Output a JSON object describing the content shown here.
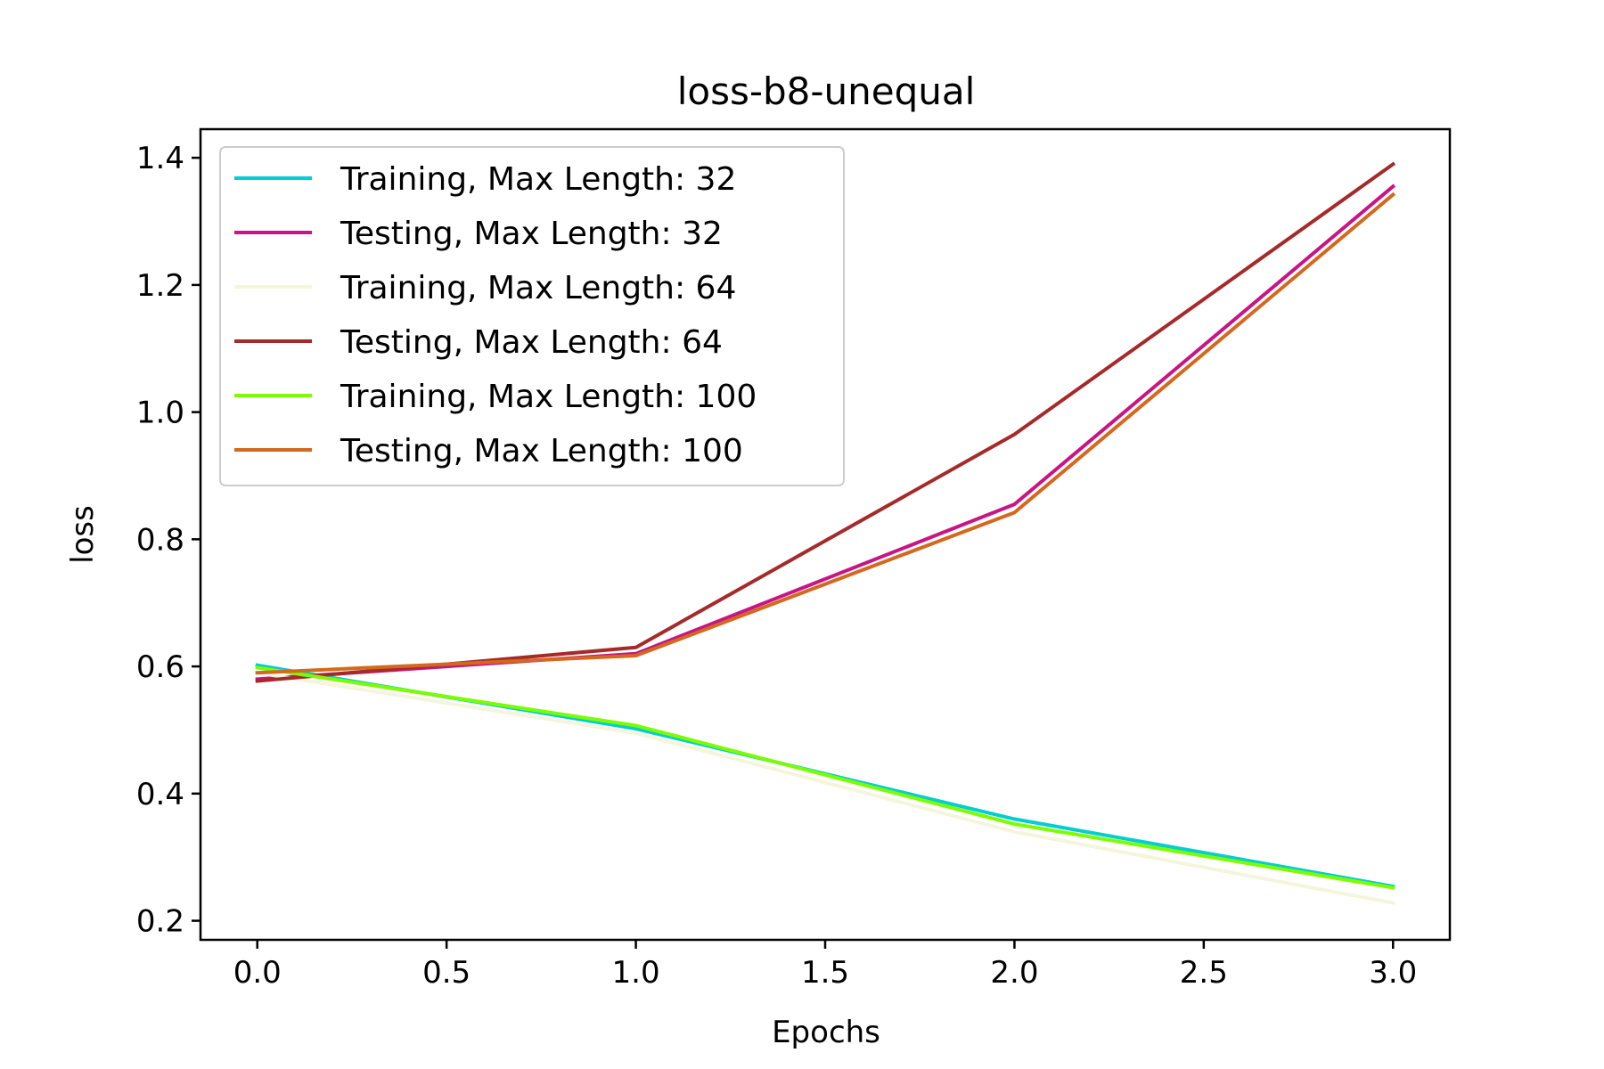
{
  "chart_data": {
    "type": "line",
    "title": "loss-b8-unequal",
    "xlabel": "Epochs",
    "ylabel": "loss",
    "xlim": [
      -0.15,
      3.15
    ],
    "ylim": [
      0.17,
      1.445
    ],
    "xticks": [
      0.0,
      0.5,
      1.0,
      1.5,
      2.0,
      2.5,
      3.0
    ],
    "xtick_labels": [
      "0.0",
      "0.5",
      "1.0",
      "1.5",
      "2.0",
      "2.5",
      "3.0"
    ],
    "yticks": [
      0.2,
      0.4,
      0.6,
      0.8,
      1.0,
      1.2,
      1.4
    ],
    "ytick_labels": [
      "0.2",
      "0.4",
      "0.6",
      "0.8",
      "1.0",
      "1.2",
      "1.4"
    ],
    "grid": false,
    "legend_position": "upper-left",
    "x": [
      0,
      1,
      2,
      3
    ],
    "series": [
      {
        "name": "Training, Max Length: 32",
        "color": "#00CED1",
        "values": [
          0.602,
          0.502,
          0.36,
          0.254
        ]
      },
      {
        "name": "Testing, Max Length: 32",
        "color": "#C71585",
        "values": [
          0.58,
          0.62,
          0.855,
          1.355
        ]
      },
      {
        "name": "Training, Max Length: 64",
        "color": "#F5F5DC",
        "values": [
          0.59,
          0.495,
          0.34,
          0.228
        ]
      },
      {
        "name": "Testing, Max Length: 64",
        "color": "#A52A2A",
        "values": [
          0.577,
          0.63,
          0.965,
          1.39
        ]
      },
      {
        "name": "Training, Max Length: 100",
        "color": "#7CFC00",
        "values": [
          0.598,
          0.507,
          0.352,
          0.252
        ]
      },
      {
        "name": "Testing, Max Length: 100",
        "color": "#D2691E",
        "values": [
          0.59,
          0.617,
          0.842,
          1.342
        ]
      }
    ]
  }
}
